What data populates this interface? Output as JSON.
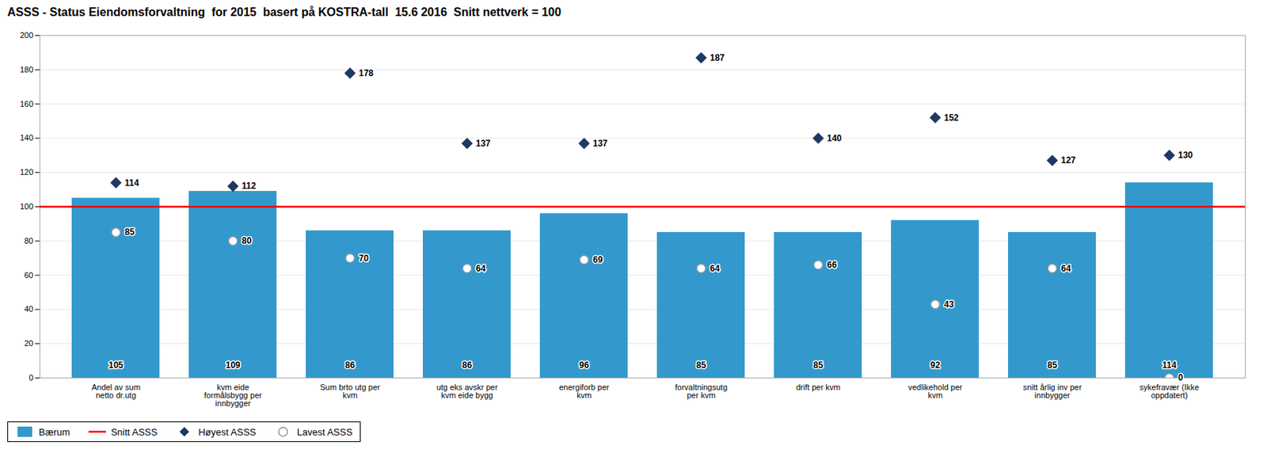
{
  "chart_data": {
    "type": "bar",
    "title": "ASSS - Status Eiendomsforvaltning  for 2015  basert på KOSTRA-tall  15.6 2016  Snitt nettverk = 100",
    "categories": [
      "Andel av sum\nnetto dr.utg",
      "kvm eide\nformålsbygg per\ninnbygger",
      "Sum brto utg per\nkvm",
      "utg eks avskr per\nkvm eide bygg",
      "energiforb per\nkvm",
      "forvaltningsutg\nper kvm",
      "drift per kvm",
      "vedlikehold per\nkvm",
      "snitt årlig inv per\ninnbygger",
      "sykefravær (Ikke\noppdatert)"
    ],
    "series": [
      {
        "name": "Bærum",
        "type": "bar",
        "color": "#3399cc",
        "data_labels": true,
        "values": [
          105,
          109,
          86,
          86,
          96,
          85,
          85,
          92,
          85,
          114
        ]
      },
      {
        "name": "Snitt ASSS",
        "type": "hline",
        "color": "red",
        "value": 100
      },
      {
        "name": "Høyest ASSS",
        "type": "scatter",
        "marker": "diamond",
        "color": "#1f3864",
        "data_labels": true,
        "values": [
          114,
          112,
          178,
          137,
          137,
          187,
          140,
          152,
          127,
          130
        ]
      },
      {
        "name": "Lavest ASSS",
        "type": "scatter",
        "marker": "circle",
        "color": "#8899aa",
        "data_labels": true,
        "values": [
          85,
          80,
          70,
          64,
          69,
          64,
          66,
          43,
          64,
          0
        ]
      }
    ],
    "ylim": [
      0,
      200
    ],
    "yticks": [
      0,
      20,
      40,
      60,
      80,
      100,
      120,
      140,
      160,
      180,
      200
    ],
    "grid": true,
    "legend": "bottom"
  }
}
